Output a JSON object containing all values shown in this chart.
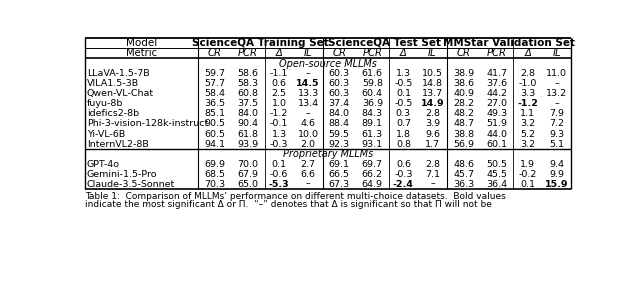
{
  "header1_labels": [
    "Model",
    "ScienceQA Training Set",
    "ScienceQA Test Set",
    "MMStar Validation Set"
  ],
  "header2": [
    "Metric",
    "CR",
    "PCR",
    "Δ",
    "IL",
    "CR",
    "PCR",
    "Δ",
    "IL",
    "CR",
    "PCR",
    "Δ",
    "IL"
  ],
  "section_open": "Open-source MLLMs",
  "section_prop": "Proprietary MLLMs",
  "rows_open": [
    [
      "LLaVA-1.5-7B",
      "59.7",
      "58.6",
      "-1.1",
      "–",
      "60.3",
      "61.6",
      "1.3",
      "10.5",
      "38.9",
      "41.7",
      "2.8",
      "11.0"
    ],
    [
      "VILA1.5-3B",
      "57.7",
      "58.3",
      "0.6",
      "**14.5**",
      "60.3",
      "59.8",
      "-0.5",
      "14.8",
      "38.6",
      "37.6",
      "-1.0",
      "–"
    ],
    [
      "Qwen-VL-Chat",
      "58.4",
      "60.8",
      "2.5",
      "13.3",
      "60.3",
      "60.4",
      "0.1",
      "13.7",
      "40.9",
      "44.2",
      "3.3",
      "13.2"
    ],
    [
      "fuyu-8b",
      "36.5",
      "37.5",
      "1.0",
      "13.4",
      "37.4",
      "36.9",
      "-0.5",
      "**14.9**",
      "28.2",
      "27.0",
      "**-1.2**",
      "–"
    ],
    [
      "idefics2-8b",
      "85.1",
      "84.0",
      "-1.2",
      "–",
      "84.0",
      "84.3",
      "0.3",
      "2.8",
      "48.2",
      "49.3",
      "1.1",
      "7.9"
    ],
    [
      "Phi-3-vision-128k-instruct",
      "90.5",
      "90.4",
      "-0.1",
      "4.6",
      "88.4",
      "89.1",
      "0.7",
      "3.9",
      "48.7",
      "51.9",
      "3.2",
      "7.2"
    ],
    [
      "Yi-VL-6B",
      "60.5",
      "61.8",
      "1.3",
      "10.0",
      "59.5",
      "61.3",
      "1.8",
      "9.6",
      "38.8",
      "44.0",
      "5.2",
      "9.3"
    ],
    [
      "InternVL2-8B",
      "94.1",
      "93.9",
      "-0.3",
      "2.0",
      "92.3",
      "93.1",
      "0.8",
      "1.7",
      "56.9",
      "60.1",
      "3.2",
      "5.1"
    ]
  ],
  "rows_prop": [
    [
      "GPT-4o",
      "69.9",
      "70.0",
      "0.1",
      "2.7",
      "69.1",
      "69.7",
      "0.6",
      "2.8",
      "48.6",
      "50.5",
      "1.9",
      "9.4"
    ],
    [
      "Gemini-1.5-Pro",
      "68.5",
      "67.9",
      "-0.6",
      "6.6",
      "66.5",
      "66.2",
      "-0.3",
      "7.1",
      "45.7",
      "45.5",
      "-0.2",
      "9.9"
    ],
    [
      "Claude-3.5-Sonnet",
      "70.3",
      "65.0",
      "**-5.3**",
      "–",
      "67.3",
      "64.9",
      "**-2.4**",
      "–",
      "36.3",
      "36.4",
      "0.1",
      "**15.9**"
    ]
  ],
  "col_widths_rel": [
    1.72,
    0.5,
    0.5,
    0.44,
    0.44,
    0.5,
    0.5,
    0.44,
    0.44,
    0.5,
    0.5,
    0.44,
    0.44
  ],
  "caption_line1": "Table 1:  Comparison of MLLMs’ performance on different multi-choice datasets.  Bold values",
  "caption_line2": "indicate the most significant Δ or Π.  “–” denotes that Δ is significant so that Π will not be",
  "background": "#ffffff"
}
